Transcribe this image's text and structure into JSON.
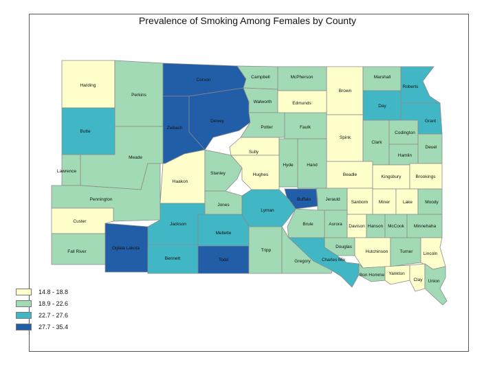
{
  "title": "Prevalence of Smoking Among Females by County",
  "colors": {
    "c1": "#ffffcc",
    "c2": "#a1dab4",
    "c3": "#41b6c4",
    "c4": "#225ea8"
  },
  "legend": [
    {
      "label": "14.8 - 18.8",
      "color_key": "c1"
    },
    {
      "label": "18.9 - 22.6",
      "color_key": "c2"
    },
    {
      "label": "22.7 - 27.6",
      "color_key": "c3"
    },
    {
      "label": "27.7 - 35.4",
      "color_key": "c4"
    }
  ],
  "counties": [
    {
      "name": "Harding",
      "cls": "c1"
    },
    {
      "name": "Perkins",
      "cls": "c2"
    },
    {
      "name": "Corson",
      "cls": "c4"
    },
    {
      "name": "Campbell",
      "cls": "c2"
    },
    {
      "name": "McPherson",
      "cls": "c2"
    },
    {
      "name": "Brown",
      "cls": "c1"
    },
    {
      "name": "Marshall",
      "cls": "c2"
    },
    {
      "name": "Roberts",
      "cls": "c3"
    },
    {
      "name": "Butte",
      "cls": "c3"
    },
    {
      "name": "Ziebach",
      "cls": "c4"
    },
    {
      "name": "Dewey",
      "cls": "c4"
    },
    {
      "name": "Walworth",
      "cls": "c2"
    },
    {
      "name": "Edmunds",
      "cls": "c1"
    },
    {
      "name": "Day",
      "cls": "c3"
    },
    {
      "name": "Grant",
      "cls": "c3"
    },
    {
      "name": "Meade",
      "cls": "c2"
    },
    {
      "name": "Potter",
      "cls": "c2"
    },
    {
      "name": "Faulk",
      "cls": "c2"
    },
    {
      "name": "Spink",
      "cls": "c1"
    },
    {
      "name": "Clark",
      "cls": "c2"
    },
    {
      "name": "Codington",
      "cls": "c2"
    },
    {
      "name": "Deuel",
      "cls": "c2"
    },
    {
      "name": "Hamlin",
      "cls": "c2"
    },
    {
      "name": "Lawrence",
      "cls": "c2"
    },
    {
      "name": "Sully",
      "cls": "c1"
    },
    {
      "name": "Hyde",
      "cls": "c2"
    },
    {
      "name": "Hand",
      "cls": "c2"
    },
    {
      "name": "Haakon",
      "cls": "c1"
    },
    {
      "name": "Stanley",
      "cls": "c2"
    },
    {
      "name": "Hughes",
      "cls": "c1"
    },
    {
      "name": "Beadle",
      "cls": "c1"
    },
    {
      "name": "Kingsbury",
      "cls": "c1"
    },
    {
      "name": "Brookings",
      "cls": "c1"
    },
    {
      "name": "Pennington",
      "cls": "c2"
    },
    {
      "name": "Buffalo",
      "cls": "c4"
    },
    {
      "name": "Jerauld",
      "cls": "c2"
    },
    {
      "name": "Sanborn",
      "cls": "c1"
    },
    {
      "name": "Miner",
      "cls": "c1"
    },
    {
      "name": "Lake",
      "cls": "c1"
    },
    {
      "name": "Moody",
      "cls": "c2"
    },
    {
      "name": "Custer",
      "cls": "c1"
    },
    {
      "name": "Jackson",
      "cls": "c3"
    },
    {
      "name": "Jones",
      "cls": "c2"
    },
    {
      "name": "Lyman",
      "cls": "c3"
    },
    {
      "name": "Brule",
      "cls": "c2"
    },
    {
      "name": "Aurora",
      "cls": "c2"
    },
    {
      "name": "Davison",
      "cls": "c1"
    },
    {
      "name": "Hanson",
      "cls": "c2"
    },
    {
      "name": "McCook",
      "cls": "c2"
    },
    {
      "name": "Minnehaha",
      "cls": "c2"
    },
    {
      "name": "Fall River",
      "cls": "c2"
    },
    {
      "name": "Oglala Lakota",
      "cls": "c4"
    },
    {
      "name": "Mellette",
      "cls": "c3"
    },
    {
      "name": "Douglas",
      "cls": "c2"
    },
    {
      "name": "Hutchinson",
      "cls": "c1"
    },
    {
      "name": "Turner",
      "cls": "c2"
    },
    {
      "name": "Lincoln",
      "cls": "c1"
    },
    {
      "name": "Bennett",
      "cls": "c3"
    },
    {
      "name": "Todd",
      "cls": "c4"
    },
    {
      "name": "Tripp",
      "cls": "c2"
    },
    {
      "name": "Gregory",
      "cls": "c2"
    },
    {
      "name": "Charles Mix",
      "cls": "c3"
    },
    {
      "name": "Bon Homme",
      "cls": "c2"
    },
    {
      "name": "Yankton",
      "cls": "c1"
    },
    {
      "name": "Clay",
      "cls": "c1"
    },
    {
      "name": "Union",
      "cls": "c2"
    }
  ]
}
